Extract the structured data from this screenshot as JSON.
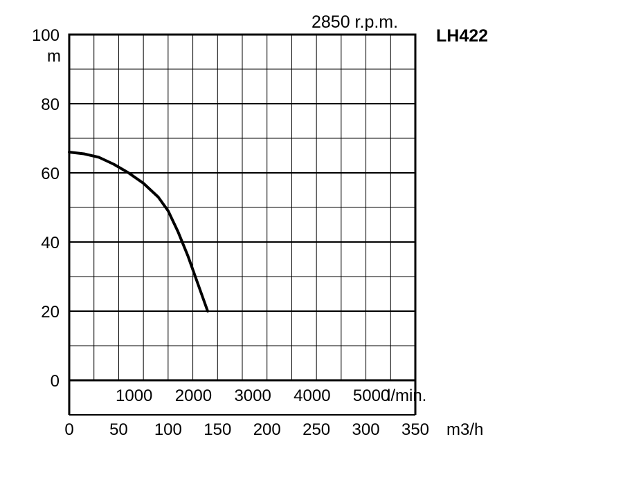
{
  "speed_label": "2850 r.p.m.",
  "model_label": "LH422",
  "colors": {
    "line": "#000000",
    "grid": "#000000",
    "background": "#ffffff"
  },
  "chart_data": {
    "type": "line",
    "title": "",
    "grid": true,
    "ylabel": "m",
    "ylim": [
      0,
      100
    ],
    "yticks": [
      "0",
      "20",
      "40",
      "60",
      "80",
      "100"
    ],
    "xlabel_flow_lmin": "l/min.",
    "xticks_flow_lmin": [
      "1000",
      "2000",
      "3000",
      "4000",
      "5000"
    ],
    "xlabel": "m3/h",
    "xlim": [
      0,
      350
    ],
    "xticks": [
      "0",
      "50",
      "100",
      "150",
      "200",
      "250",
      "300",
      "350"
    ],
    "series": [
      {
        "x": [
          0,
          15,
          30,
          45,
          60,
          75,
          90,
          100,
          110,
          120,
          130,
          140
        ],
        "values": [
          66,
          65.5,
          64.5,
          62.5,
          60,
          57,
          53,
          49,
          43,
          36,
          28,
          20
        ]
      }
    ]
  }
}
